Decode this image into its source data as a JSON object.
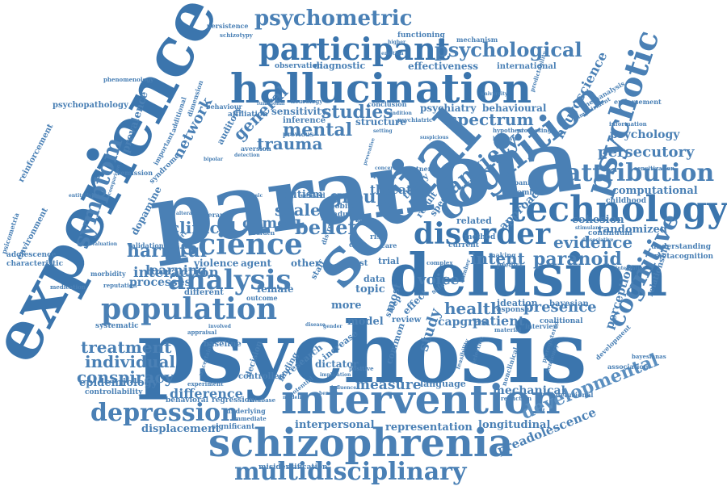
{
  "colors": {
    "primary": "#4a80b5",
    "dark": "#3b75ad",
    "light": "#5b8fc0",
    "background": "#ffffff"
  },
  "words": [
    "psychosis",
    "paranoia",
    "experience",
    "social",
    "delusion",
    "hallucination",
    "intervention",
    "schizophrenia",
    "cognition",
    "technology",
    "population",
    "psychotic",
    "participant",
    "psychometric",
    "psychological",
    "science",
    "analysis",
    "disorder",
    "attribution",
    "depression",
    "multidisciplinary",
    "symptom",
    "cognitive",
    "developmental",
    "mental",
    "anxiety",
    "persecutory",
    "paranoid",
    "harmful",
    "belief",
    "evidence",
    "treatment",
    "individual",
    "conspiracy",
    "difference",
    "interaction",
    "clinical",
    "studies",
    "spectrum",
    "general",
    "network",
    "trauma",
    "group",
    "game",
    "scale",
    "health",
    "measure",
    "study",
    "presence",
    "mechanical",
    "epidemiology",
    "learning",
    "processes",
    "intent",
    "voice",
    "patient",
    "perception",
    "approach",
    "neuroscience",
    "preadolescence",
    "representation",
    "interpersonal",
    "displacement",
    "longitudinal",
    "psychology",
    "computational",
    "randomized",
    "cohesion",
    "behavioural",
    "psychiatry",
    "effectiveness",
    "diagnostic",
    "international",
    "sensitivity",
    "inference",
    "structure",
    "prevalence",
    "psychopathology",
    "threat",
    "autism",
    "dopamine",
    "model",
    "capgras",
    "common",
    "language",
    "dictator",
    "increase",
    "research",
    "finding",
    "decision",
    "controlled",
    "controllability",
    "behavioral",
    "regression",
    "significant",
    "misidentification",
    "relationship",
    "metacognition",
    "understanding",
    "continuum",
    "childhood",
    "colombia",
    "spanish",
    "related",
    "method",
    "ideation",
    "response",
    "bayesian",
    "coalitional",
    "interview",
    "review",
    "effect",
    "topic",
    "data",
    "female",
    "violence",
    "agent",
    "other",
    "different",
    "reinforcement",
    "environment",
    "adolescence",
    "characteristic",
    "psicometria",
    "medication",
    "systematic",
    "baseline",
    "phenomenology",
    "persistence",
    "schizotypy",
    "observation",
    "functioning",
    "mechanism",
    "predictability",
    "metaanalysis",
    "endorsement",
    "information",
    "sensitization",
    "association",
    "delusional",
    "development",
    "bayesianas",
    "reduction",
    "nonclinical",
    "preregistered",
    "predict",
    "making",
    "trial",
    "current",
    "most",
    "more",
    "sleep",
    "behaviour",
    "affiliation",
    "auditory",
    "aversion",
    "previous",
    "conclusion",
    "remission",
    "syndrome",
    "important",
    "additional",
    "dimension",
    "validation",
    "evaluation",
    "support",
    "morbidity",
    "reputation",
    "outcome",
    "underlying",
    "immediate",
    "experiment",
    "uncertainty",
    "database",
    "hypothesi",
    "betrayal",
    "processing",
    "impairment",
    "neurology",
    "functional",
    "university",
    "stimulant",
    "dissociative",
    "integration",
    "comparison",
    "entitativity",
    "suspicious",
    "partner",
    "theory",
    "specific",
    "result",
    "factor",
    "concern",
    "complex",
    "safety",
    "number",
    "implication",
    "potential",
    "modeling",
    "benefit",
    "adult",
    "mobile",
    "sensed",
    "risk",
    "care",
    "self",
    "case",
    "trust",
    "staff",
    "distress",
    "burden",
    "therapy",
    "alteration",
    "appraisal",
    "involved",
    "influence",
    "positive",
    "feasibility",
    "selection",
    "tendency",
    "material",
    "psychiatric",
    "condition",
    "higher",
    "emotion",
    "detection",
    "bipolar",
    "forensic",
    "setting",
    "preventive",
    "disease",
    "gender"
  ]
}
